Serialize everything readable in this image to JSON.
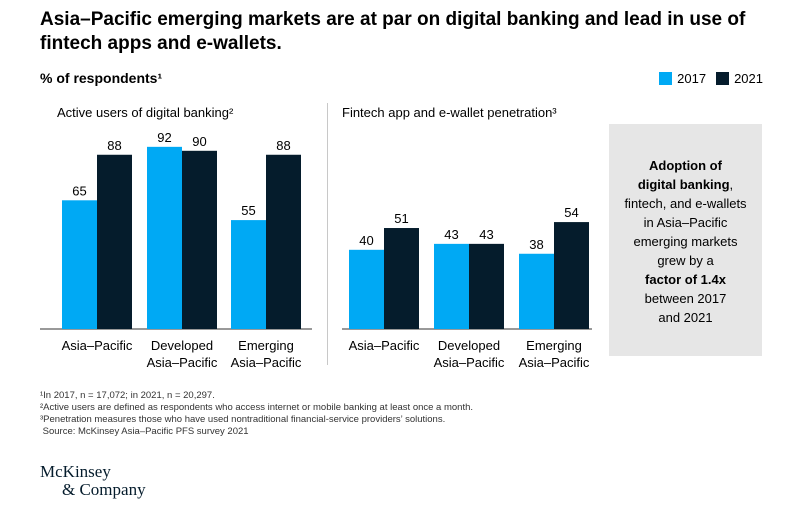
{
  "title": "Asia–Pacific emerging markets are at par on digital banking and lead in use of fintech apps and e-wallets.",
  "subtitle": "% of respondents¹",
  "legend": {
    "items": [
      {
        "label": "2017",
        "color": "#00a9f4"
      },
      {
        "label": "2021",
        "color": "#051c2c"
      }
    ]
  },
  "callout": {
    "line1": "Adoption of",
    "line2_bold": "digital banking",
    "line2_rest": ",",
    "line3": "fintech, and e-wallets",
    "line4": "in Asia–Pacific",
    "line5": "emerging markets",
    "line6": "grew by a",
    "line7_bold": "factor of 1.4x",
    "line8": "between 2017",
    "line9": "and 2021"
  },
  "chart_data": [
    {
      "type": "bar",
      "title": "Active users of digital banking²",
      "categories": [
        [
          "Asia–Pacific"
        ],
        [
          "Developed",
          "Asia–Pacific"
        ],
        [
          "Emerging",
          "Asia–Pacific"
        ]
      ],
      "series": [
        {
          "name": "2017",
          "values": [
            65,
            92,
            55
          ],
          "color": "#00a9f4"
        },
        {
          "name": "2021",
          "values": [
            88,
            90,
            88
          ],
          "color": "#051c2c"
        }
      ],
      "ylim": [
        0,
        100
      ]
    },
    {
      "type": "bar",
      "title": "Fintech app and e-wallet penetration³",
      "categories": [
        [
          "Asia–Pacific"
        ],
        [
          "Developed",
          "Asia–Pacific"
        ],
        [
          "Emerging",
          "Asia–Pacific"
        ]
      ],
      "series": [
        {
          "name": "2017",
          "values": [
            40,
            43,
            38
          ],
          "color": "#00a9f4"
        },
        {
          "name": "2021",
          "values": [
            51,
            43,
            54
          ],
          "color": "#051c2c"
        }
      ],
      "ylim": [
        0,
        100
      ]
    }
  ],
  "footnotes": [
    "¹In 2017, n = 17,072; in 2021, n = 20,297.",
    "²Active users are defined as respondents who access internet or mobile banking at least once a month.",
    "³Penetration measures those who have used nontraditional financial-service providers’ solutions.",
    " Source: McKinsey Asia–Pacific PFS survey 2021"
  ],
  "logo": {
    "line1": "McKinsey",
    "line2": "& Company"
  }
}
